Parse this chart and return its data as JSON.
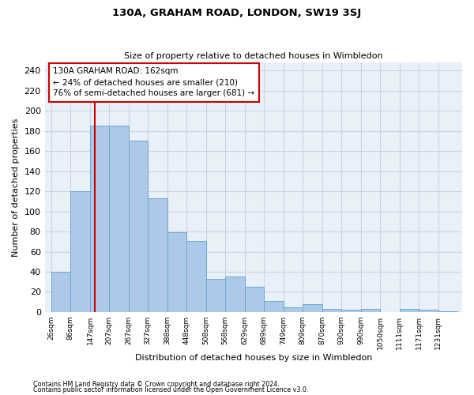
{
  "title": "130A, GRAHAM ROAD, LONDON, SW19 3SJ",
  "subtitle": "Size of property relative to detached houses in Wimbledon",
  "xlabel": "Distribution of detached houses by size in Wimbledon",
  "ylabel": "Number of detached properties",
  "bar_color": "#adc8e8",
  "bar_edge_color": "#6aaad4",
  "grid_color": "#c8d4e4",
  "bg_color": "#eaf0f8",
  "vline_x": 162,
  "vline_color": "#cc0000",
  "annotation_line1": "130A GRAHAM ROAD: 162sqm",
  "annotation_line2": "← 24% of detached houses are smaller (210)",
  "annotation_line3": "76% of semi-detached houses are larger (681) →",
  "annotation_box_color": "#cc0000",
  "annotation_bg": "#ffffff",
  "ylim": [
    0,
    248
  ],
  "yticks": [
    0,
    20,
    40,
    60,
    80,
    100,
    120,
    140,
    160,
    180,
    200,
    220,
    240
  ],
  "footnote1": "Contains HM Land Registry data © Crown copyright and database right 2024.",
  "footnote2": "Contains public sector information licensed under the Open Government Licence v3.0.",
  "bin_edges": [
    26,
    86,
    147,
    207,
    267,
    327,
    388,
    448,
    508,
    568,
    629,
    689,
    749,
    809,
    870,
    930,
    990,
    1050,
    1111,
    1171,
    1231,
    1291
  ],
  "hist_values": [
    40,
    120,
    185,
    185,
    170,
    113,
    79,
    71,
    33,
    35,
    25,
    11,
    5,
    8,
    3,
    2,
    3,
    0,
    3,
    2,
    1
  ],
  "bar_labels": [
    "26sqm",
    "86sqm",
    "147sqm",
    "207sqm",
    "267sqm",
    "327sqm",
    "388sqm",
    "448sqm",
    "508sqm",
    "568sqm",
    "629sqm",
    "689sqm",
    "749sqm",
    "809sqm",
    "870sqm",
    "930sqm",
    "990sqm",
    "1050sqm",
    "1111sqm",
    "1171sqm",
    "1231sqm"
  ]
}
